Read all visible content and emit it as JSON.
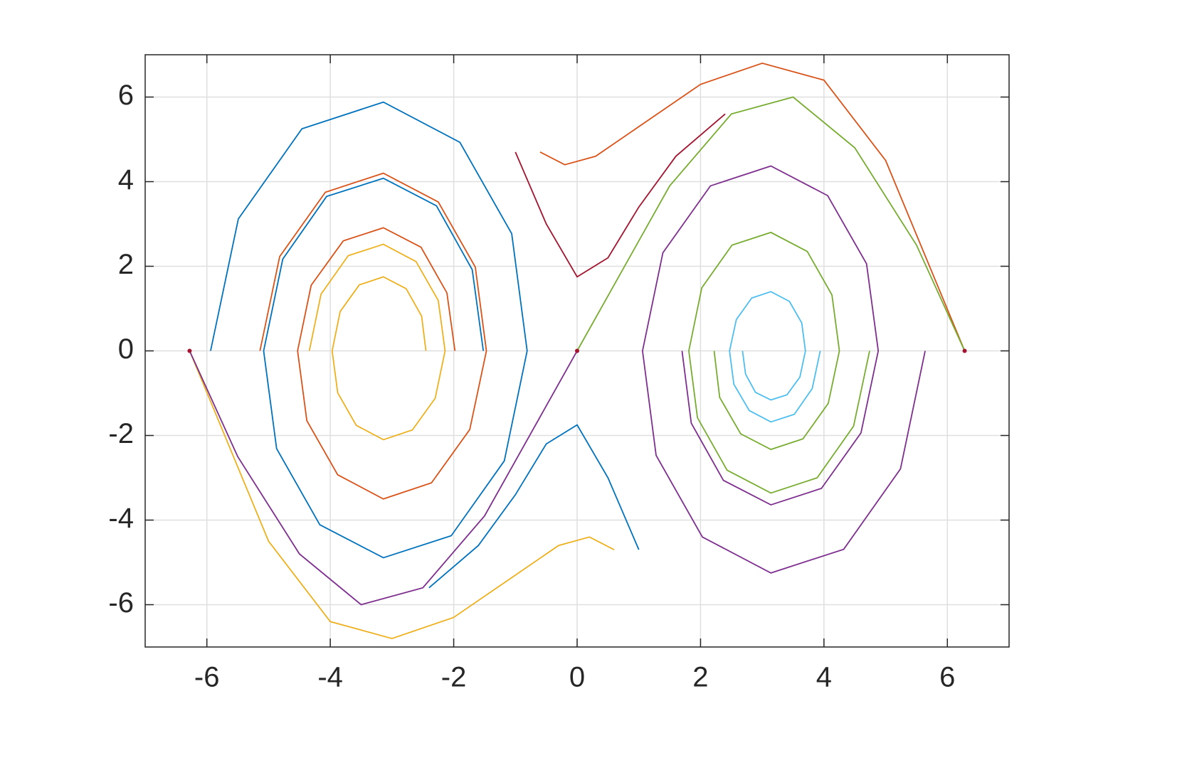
{
  "chart_data": {
    "type": "line",
    "xlim": [
      -7,
      7
    ],
    "ylim": [
      -7,
      7
    ],
    "xticks": [
      -6,
      -4,
      -2,
      0,
      2,
      4,
      6
    ],
    "yticks": [
      -6,
      -4,
      -2,
      0,
      2,
      4,
      6
    ],
    "grid": true,
    "series": [
      {
        "color": "#0072bd",
        "x": [
          -5.94,
          -5.49,
          -4.46,
          -3.14,
          -1.9,
          -1.06,
          -0.81,
          -1.18,
          -2.04,
          -3.14,
          -4.17,
          -4.87,
          -5.08,
          -4.77,
          -4.06,
          -3.14,
          -2.28,
          -1.7,
          -1.52
        ],
        "y": [
          0,
          3.12,
          5.25,
          5.88,
          4.93,
          2.77,
          0,
          -2.6,
          -4.37,
          -4.89,
          -4.11,
          -2.31,
          0,
          2.17,
          3.65,
          4.08,
          3.43,
          1.92,
          0
        ]
      },
      {
        "color": "#d95319",
        "x": [
          -5.14,
          -4.82,
          -4.08,
          -3.14,
          -2.25,
          -1.65,
          -1.47,
          -1.74,
          -2.36,
          -3.14,
          -3.88,
          -4.38,
          -4.53,
          -4.31,
          -3.79,
          -3.14,
          -2.53,
          -2.11,
          -1.98
        ],
        "y": [
          0,
          2.23,
          3.75,
          4.2,
          3.52,
          1.98,
          0,
          -1.86,
          -3.12,
          -3.5,
          -2.93,
          -1.65,
          0,
          1.55,
          2.6,
          2.91,
          2.45,
          1.37,
          0
        ]
      },
      {
        "color": "#edb120",
        "x": [
          -4.34,
          -4.15,
          -3.71,
          -3.14,
          -2.61,
          -2.25,
          -2.14,
          -2.3,
          -2.67,
          -3.14,
          -3.58,
          -3.88,
          -3.97,
          -3.84,
          -3.53,
          -3.14,
          -2.77,
          -2.52,
          -2.45
        ],
        "y": [
          0,
          1.34,
          2.25,
          2.52,
          2.11,
          1.19,
          0,
          -1.12,
          -1.87,
          -2.1,
          -1.76,
          -0.99,
          0,
          0.93,
          1.56,
          1.75,
          1.47,
          0.82,
          0
        ]
      },
      {
        "color": "#7e2f8e",
        "x": [
          5.64,
          5.24,
          4.32,
          3.14,
          2.03,
          1.28,
          1.06,
          1.39,
          2.16,
          3.14,
          4.06,
          4.69,
          4.88,
          4.6,
          3.96,
          3.14,
          2.37,
          1.85,
          1.7
        ],
        "y": [
          0,
          -2.79,
          -4.69,
          -5.25,
          -4.4,
          -2.47,
          0,
          2.32,
          3.9,
          4.37,
          3.67,
          2.06,
          0,
          -1.94,
          -3.25,
          -3.64,
          -3.06,
          -1.71,
          0
        ]
      },
      {
        "color": "#77ac30",
        "x": [
          4.74,
          4.48,
          3.89,
          3.14,
          2.43,
          1.95,
          1.81,
          2.02,
          2.51,
          3.14,
          3.73,
          4.13,
          4.25,
          4.07,
          3.66,
          3.14,
          2.65,
          2.31,
          2.22
        ],
        "y": [
          0,
          -1.78,
          -3.0,
          -3.36,
          -2.82,
          -1.58,
          0,
          1.49,
          2.5,
          2.8,
          2.35,
          1.32,
          0,
          -1.24,
          -2.08,
          -2.33,
          -1.96,
          -1.1,
          0
        ]
      },
      {
        "color": "#4dbeee",
        "x": [
          3.94,
          3.81,
          3.52,
          3.14,
          2.79,
          2.54,
          2.47,
          2.58,
          2.83,
          3.14,
          3.44,
          3.64,
          3.7,
          3.61,
          3.4,
          3.14,
          2.89,
          2.73,
          2.68
        ],
        "y": [
          0,
          -0.89,
          -1.5,
          -1.68,
          -1.41,
          -0.79,
          0,
          0.74,
          1.25,
          1.4,
          1.17,
          0.66,
          0,
          -0.62,
          -1.04,
          -1.16,
          -0.98,
          -0.55,
          0
        ]
      },
      {
        "color": "#a2142f",
        "x": [
          -1.0,
          -0.5,
          0,
          0.5,
          1.0,
          1.6,
          2.4
        ],
        "y": [
          4.7,
          3.0,
          1.75,
          2.2,
          3.4,
          4.6,
          5.6
        ]
      },
      {
        "color": "#0072bd",
        "x": [
          1.0,
          0.5,
          0,
          -0.5,
          -1.0,
          -1.6,
          -2.4
        ],
        "y": [
          -4.7,
          -3.0,
          -1.75,
          -2.2,
          -3.4,
          -4.6,
          -5.6
        ]
      },
      {
        "color": "#d95319",
        "x": [
          -0.6,
          -0.2,
          0.3,
          1.0,
          2.0,
          3.0,
          4.0,
          5.0,
          6.28
        ],
        "y": [
          4.7,
          4.4,
          4.6,
          5.3,
          6.3,
          6.8,
          6.4,
          4.5,
          0
        ]
      },
      {
        "color": "#edb120",
        "x": [
          0.6,
          0.2,
          -0.3,
          -1.0,
          -2.0,
          -3.0,
          -4.0,
          -5.0,
          -6.28
        ],
        "y": [
          -4.7,
          -4.4,
          -4.6,
          -5.3,
          -6.3,
          -6.8,
          -6.4,
          -4.5,
          0
        ]
      },
      {
        "color": "#7e2f8e",
        "x": [
          -6.28,
          -5.5,
          -4.5,
          -3.5,
          -2.5,
          -1.5,
          -0.5,
          0
        ],
        "y": [
          0,
          -2.5,
          -4.8,
          -6.0,
          -5.6,
          -3.9,
          -1.3,
          0
        ]
      },
      {
        "color": "#77ac30",
        "x": [
          6.28,
          5.5,
          4.5,
          3.5,
          2.5,
          1.5,
          0.5,
          0
        ],
        "y": [
          0,
          2.5,
          4.8,
          6.0,
          5.6,
          3.9,
          1.3,
          0
        ]
      }
    ],
    "points": {
      "color": "#a2142f",
      "x": [
        -6.28,
        0,
        6.28
      ],
      "y": [
        0,
        0,
        0
      ]
    }
  }
}
